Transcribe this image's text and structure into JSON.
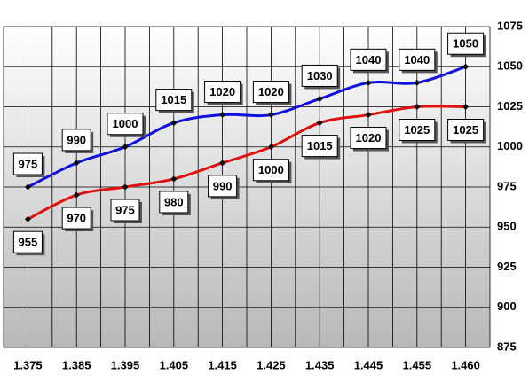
{
  "chart_data": {
    "type": "line",
    "categories": [
      "1.375",
      "1.385",
      "1.395",
      "1.405",
      "1.415",
      "1.425",
      "1.435",
      "1.445",
      "1.455",
      "1.460"
    ],
    "series": [
      {
        "color": "#1010e0",
        "values": [
          975,
          990,
          1000,
          1015,
          1020,
          1020,
          1030,
          1040,
          1040,
          1050
        ]
      },
      {
        "color": "#e01010",
        "values": [
          955,
          970,
          975,
          980,
          990,
          1000,
          1015,
          1020,
          1025,
          1025
        ]
      }
    ],
    "ylim": [
      875,
      1075
    ],
    "yticks": [
      875,
      900,
      925,
      950,
      975,
      1000,
      1025,
      1050,
      1075
    ],
    "grid": true
  }
}
